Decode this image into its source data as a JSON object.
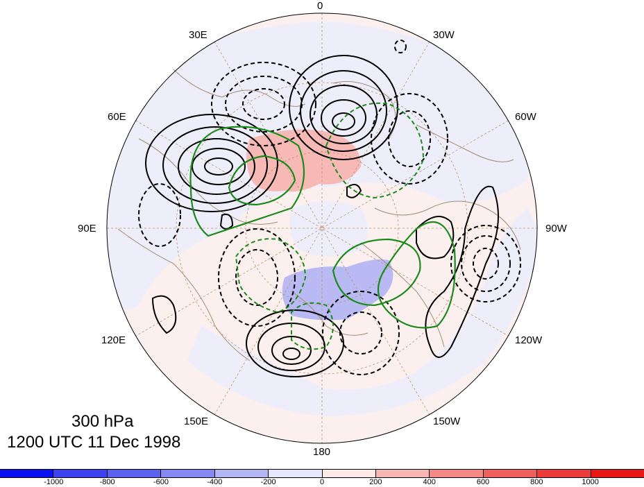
{
  "titles": {
    "level": "300 hPa",
    "time": "1200 UTC 11 Dec 1998"
  },
  "longitude_labels": [
    "0",
    "30W",
    "60W",
    "90W",
    "120W",
    "150W",
    "180",
    "150E",
    "120E",
    "90E",
    "60E",
    "30E"
  ],
  "colorbar": {
    "colors": [
      "#0b11f0",
      "#3c42f0",
      "#5b60f0",
      "#8588f0",
      "#b3b5f5",
      "#e6e7fb",
      "#fde9e7",
      "#f8b6b3",
      "#f38885",
      "#ef5f5c",
      "#ec3c3a",
      "#ea1717"
    ],
    "tick_labels": [
      "-1000",
      "-800",
      "-600",
      "-400",
      "-200",
      "0",
      "200",
      "400",
      "600",
      "800",
      "1000"
    ]
  },
  "colors": {
    "ocean_tint": "#eeeefb",
    "warm_tint": "#fcf0ee",
    "coastline": "#a08a72",
    "grid": "#b8926a",
    "positive_contour": "#000000",
    "negative_contour": "#000000",
    "green_contour": "#1a8a1a"
  }
}
